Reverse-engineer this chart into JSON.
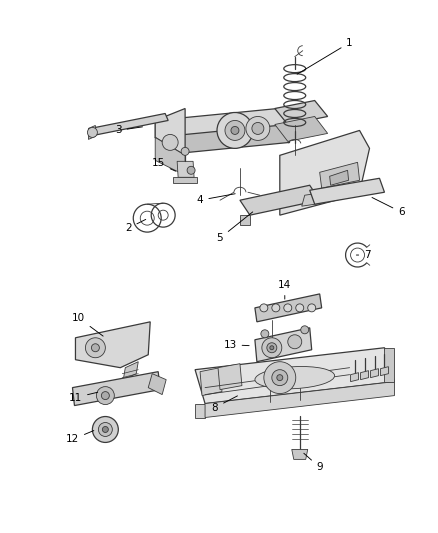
{
  "background_color": "#ffffff",
  "fig_width": 4.38,
  "fig_height": 5.33,
  "dpi": 100,
  "line_color": "#3a3a3a",
  "fill_light": "#e8e8e8",
  "fill_mid": "#d0d0d0",
  "fill_dark": "#b0b0b0",
  "label_fontsize": 7.5,
  "label_color": "#000000"
}
